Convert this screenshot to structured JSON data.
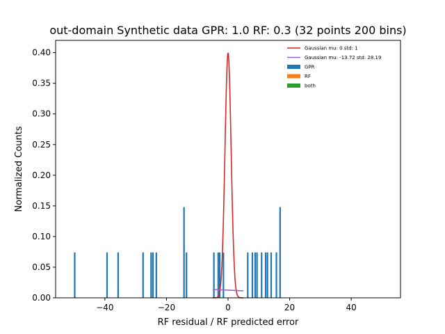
{
  "chart_data": {
    "type": "bar",
    "title": "out-domain Synthetic data GPR: 1.0 RF: 0.3 (32 points 200 bins)",
    "xlabel": "RF residual / RF predicted error",
    "ylabel": "Normalized Counts",
    "xlim": [
      -56,
      56
    ],
    "ylim": [
      0,
      0.42
    ],
    "xticks": [
      -40,
      -20,
      0,
      20,
      40
    ],
    "xtick_labels": [
      "−40",
      "−20",
      "0",
      "20",
      "40"
    ],
    "yticks": [
      0.0,
      0.05,
      0.1,
      0.15,
      0.2,
      0.25,
      0.3,
      0.35,
      0.4
    ],
    "ytick_labels": [
      "0.00",
      "0.05",
      "0.10",
      "0.15",
      "0.20",
      "0.25",
      "0.30",
      "0.35",
      "0.40"
    ],
    "grid": false,
    "legend_position": "top-right",
    "bar_width": 0.5,
    "series": [
      {
        "name": "GPR",
        "color": "#1f77b4",
        "bars": [
          {
            "x": -49.8,
            "y": 0.074
          },
          {
            "x": -39.3,
            "y": 0.074
          },
          {
            "x": -35.7,
            "y": 0.074
          },
          {
            "x": -27.6,
            "y": 0.074
          },
          {
            "x": -25.0,
            "y": 0.074
          },
          {
            "x": -24.4,
            "y": 0.074
          },
          {
            "x": -23.3,
            "y": 0.074
          },
          {
            "x": -14.3,
            "y": 0.148
          },
          {
            "x": -13.5,
            "y": 0.074
          },
          {
            "x": -4.6,
            "y": 0.074
          },
          {
            "x": -3.2,
            "y": 0.074
          },
          {
            "x": -2.7,
            "y": 0.074
          },
          {
            "x": -1.5,
            "y": 0.074
          },
          {
            "x": 6.4,
            "y": 0.074
          },
          {
            "x": 7.9,
            "y": 0.074
          },
          {
            "x": 8.8,
            "y": 0.074
          },
          {
            "x": 9.4,
            "y": 0.074
          },
          {
            "x": 10.9,
            "y": 0.074
          },
          {
            "x": 12.2,
            "y": 0.074
          },
          {
            "x": 12.8,
            "y": 0.074
          },
          {
            "x": 14.0,
            "y": 0.074
          },
          {
            "x": 15.7,
            "y": 0.074
          },
          {
            "x": 16.9,
            "y": 0.148
          }
        ]
      },
      {
        "name": "RF",
        "color": "#ff7f0e",
        "bars": []
      },
      {
        "name": "both",
        "color": "#2ca02c",
        "bars": []
      }
    ],
    "curves": [
      {
        "name": "Gaussian mu: 0 std: 1",
        "color": "#d62728",
        "mu": 0,
        "std": 1,
        "x_range": [
          -5,
          5
        ]
      },
      {
        "name": "Gaussian mu: -13.72 std: 28.19",
        "color": "#9467bd",
        "mu": -13.72,
        "std": 28.19,
        "x_range": [
          -5,
          5
        ]
      }
    ]
  }
}
